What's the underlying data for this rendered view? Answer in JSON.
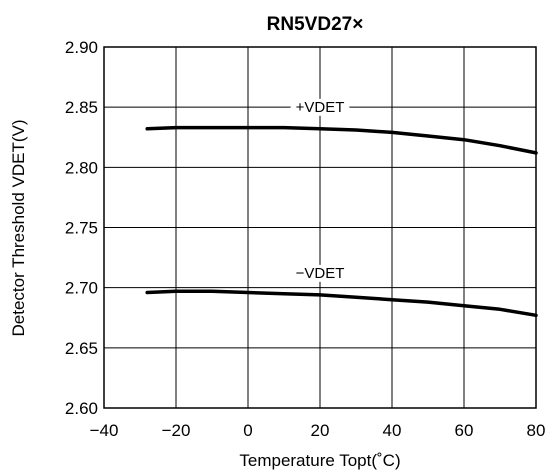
{
  "chart_data": {
    "type": "line",
    "title": "RN5VD27×",
    "xlabel": "Temperature Topt(˚C)",
    "ylabel": "Detector Threshold VDET(V)",
    "xlim": [
      -40,
      80
    ],
    "ylim": [
      2.6,
      2.9
    ],
    "xticks": [
      -40,
      -20,
      0,
      20,
      40,
      60,
      80
    ],
    "yticks": [
      2.6,
      2.65,
      2.7,
      2.75,
      2.8,
      2.85,
      2.9
    ],
    "xtick_labels": [
      "−40",
      "−20",
      "0",
      "20",
      "40",
      "60",
      "80"
    ],
    "ytick_labels": [
      "2.60",
      "2.65",
      "2.70",
      "2.75",
      "2.80",
      "2.85",
      "2.90"
    ],
    "grid": true,
    "series": [
      {
        "name": "+VDET",
        "x": [
          -28,
          -20,
          -10,
          0,
          10,
          20,
          30,
          40,
          50,
          60,
          70,
          80
        ],
        "y": [
          2.832,
          2.833,
          2.833,
          2.833,
          2.833,
          2.832,
          2.831,
          2.829,
          2.826,
          2.823,
          2.818,
          2.812
        ]
      },
      {
        "name": "−VDET",
        "x": [
          -28,
          -20,
          -10,
          0,
          10,
          20,
          30,
          40,
          50,
          60,
          70,
          80
        ],
        "y": [
          2.696,
          2.697,
          2.697,
          2.696,
          2.695,
          2.694,
          2.692,
          2.69,
          2.688,
          2.685,
          2.682,
          2.677
        ]
      }
    ],
    "line_color": "#000000"
  }
}
